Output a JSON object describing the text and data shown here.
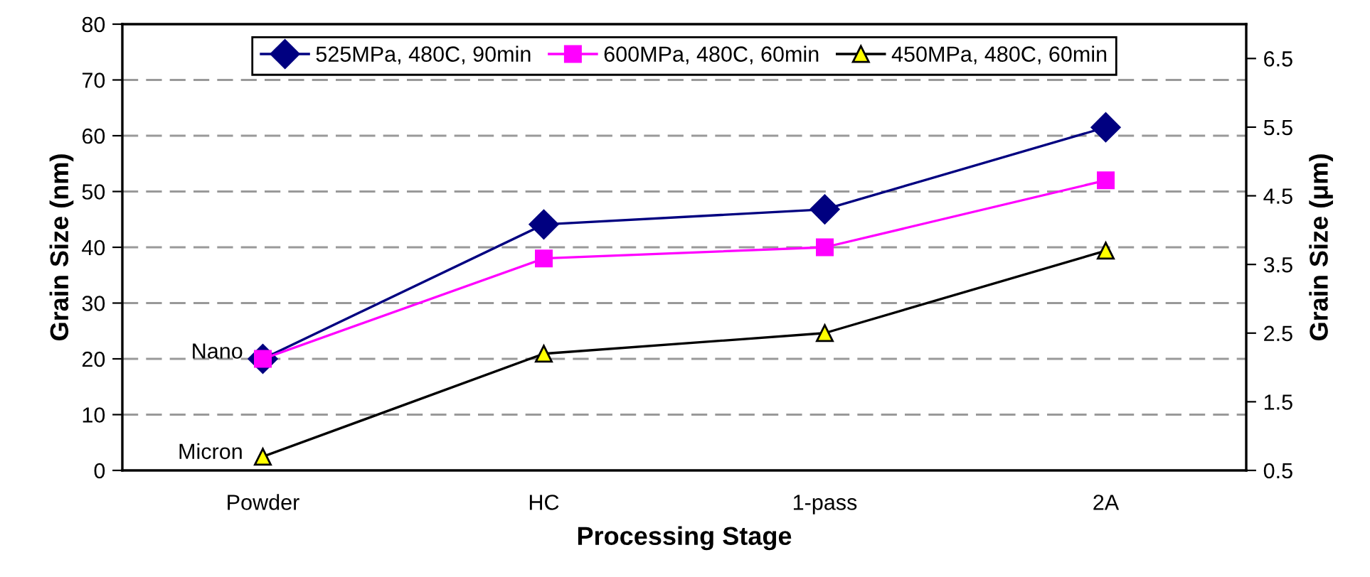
{
  "chart_data": {
    "type": "line",
    "xlabel": "Processing Stage",
    "ylabel": "Grain Size (nm)",
    "y2label": "Grain Size (μm)",
    "categories": [
      "Powder",
      "HC",
      "1-pass",
      "2A"
    ],
    "series": [
      {
        "name": "525MPa, 480C, 90min",
        "color": "#000080",
        "marker": "diamond",
        "values": [
          20,
          44.1,
          46.8,
          61.5
        ]
      },
      {
        "name": "600MPa, 480C, 60min",
        "color": "#ff00ff",
        "marker": "square",
        "values": [
          20,
          38,
          40,
          52
        ]
      },
      {
        "name": "450MPa, 480C, 60min",
        "color": "#000000",
        "marker": "triangle",
        "axis": "y2",
        "values": [
          0.7,
          2.2,
          2.5,
          3.7
        ]
      }
    ],
    "ylim": [
      0,
      80
    ],
    "yticks": [
      0,
      10,
      20,
      30,
      40,
      50,
      60,
      70,
      80
    ],
    "y2lim": [
      0.5,
      7.0
    ],
    "y2ticks": [
      0.5,
      1.5,
      2.5,
      3.5,
      4.5,
      5.5,
      6.5
    ],
    "annotations": [
      {
        "text": "Nano",
        "x": "Powder",
        "y": 20
      },
      {
        "text": "Micron",
        "x": "Powder",
        "y": 2
      }
    ],
    "grid": "y",
    "legend": "top",
    "line_style": "solid"
  }
}
